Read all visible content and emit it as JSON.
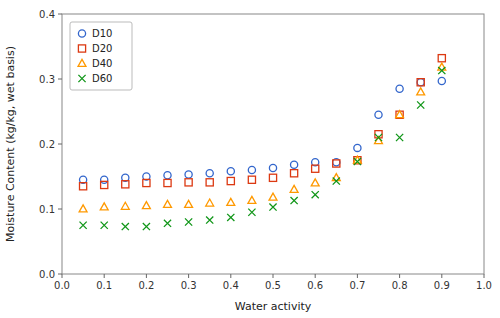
{
  "chart_data": {
    "type": "scatter",
    "x_label": "Water activity",
    "y_label": "Moisture Content (kg/kg, wet basis)",
    "x": [
      0.05,
      0.1,
      0.15,
      0.2,
      0.25,
      0.3,
      0.35,
      0.4,
      0.45,
      0.5,
      0.55,
      0.6,
      0.65,
      0.7,
      0.75,
      0.8,
      0.85,
      0.9
    ],
    "series": [
      {
        "name": "D10",
        "marker": "circle",
        "values": [
          0.145,
          0.145,
          0.148,
          0.15,
          0.152,
          0.153,
          0.155,
          0.158,
          0.16,
          0.163,
          0.168,
          0.172,
          0.172,
          0.194,
          0.245,
          0.285,
          0.295,
          0.297
        ]
      },
      {
        "name": "D20",
        "marker": "square",
        "values": [
          0.135,
          0.137,
          0.138,
          0.14,
          0.14,
          0.141,
          0.141,
          0.143,
          0.145,
          0.148,
          0.155,
          0.162,
          0.17,
          0.175,
          0.215,
          0.245,
          0.295,
          0.332
        ]
      },
      {
        "name": "D40",
        "marker": "triangle",
        "values": [
          0.1,
          0.103,
          0.104,
          0.105,
          0.107,
          0.107,
          0.109,
          0.11,
          0.113,
          0.118,
          0.13,
          0.14,
          0.148,
          0.175,
          0.205,
          0.245,
          0.28,
          0.318
        ]
      },
      {
        "name": "D60",
        "marker": "cross",
        "values": [
          0.075,
          0.075,
          0.073,
          0.073,
          0.078,
          0.08,
          0.083,
          0.087,
          0.095,
          0.103,
          0.113,
          0.122,
          0.143,
          0.173,
          0.21,
          0.21,
          0.26,
          0.313
        ]
      }
    ],
    "xlim": [
      0,
      1
    ],
    "ylim": [
      0,
      0.4
    ],
    "xticks": [
      {
        "value": 0,
        "label": "0.0"
      },
      0.1,
      0.2,
      0.3,
      0.4,
      0.5,
      0.6,
      0.7,
      0.8,
      0.9,
      {
        "value": 1.0,
        "label": "1.0"
      }
    ],
    "yticks": [
      {
        "value": 0,
        "label": "0.0"
      },
      0.1,
      0.2,
      0.3,
      0.4
    ],
    "grid": false,
    "legend": "upper-left"
  }
}
